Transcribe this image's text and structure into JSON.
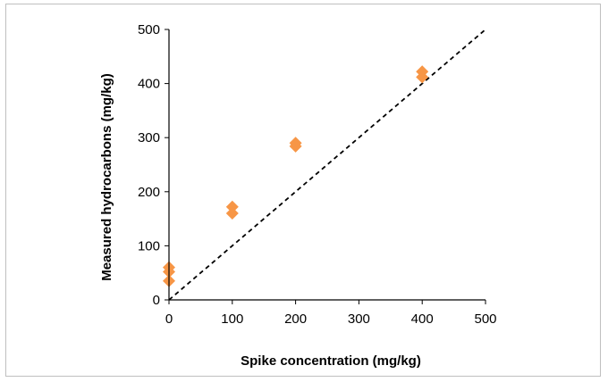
{
  "chart_data": {
    "type": "scatter",
    "title": "",
    "xlabel": "Spike concentration  (mg/kg)",
    "ylabel": "Measured hydrocarbons  (mg/kg)",
    "xlim": [
      0,
      500
    ],
    "ylim": [
      0,
      500
    ],
    "x_ticks": [
      "0",
      "100",
      "200",
      "300",
      "400",
      "500"
    ],
    "y_ticks": [
      "0",
      "100",
      "200",
      "300",
      "400",
      "500"
    ],
    "grid": false,
    "legend": "none",
    "series": [
      {
        "marker": "diamond",
        "color": "#f79646",
        "points": [
          {
            "x": 0,
            "y": 60
          },
          {
            "x": 0,
            "y": 52
          },
          {
            "x": 0,
            "y": 35
          },
          {
            "x": 100,
            "y": 172
          },
          {
            "x": 100,
            "y": 160
          },
          {
            "x": 200,
            "y": 290
          },
          {
            "x": 200,
            "y": 284
          },
          {
            "x": 400,
            "y": 422
          },
          {
            "x": 400,
            "y": 412
          }
        ]
      }
    ],
    "reference_line": {
      "x": [
        0,
        500
      ],
      "y": [
        0,
        500
      ],
      "style": "dashed",
      "color": "#000000"
    }
  }
}
